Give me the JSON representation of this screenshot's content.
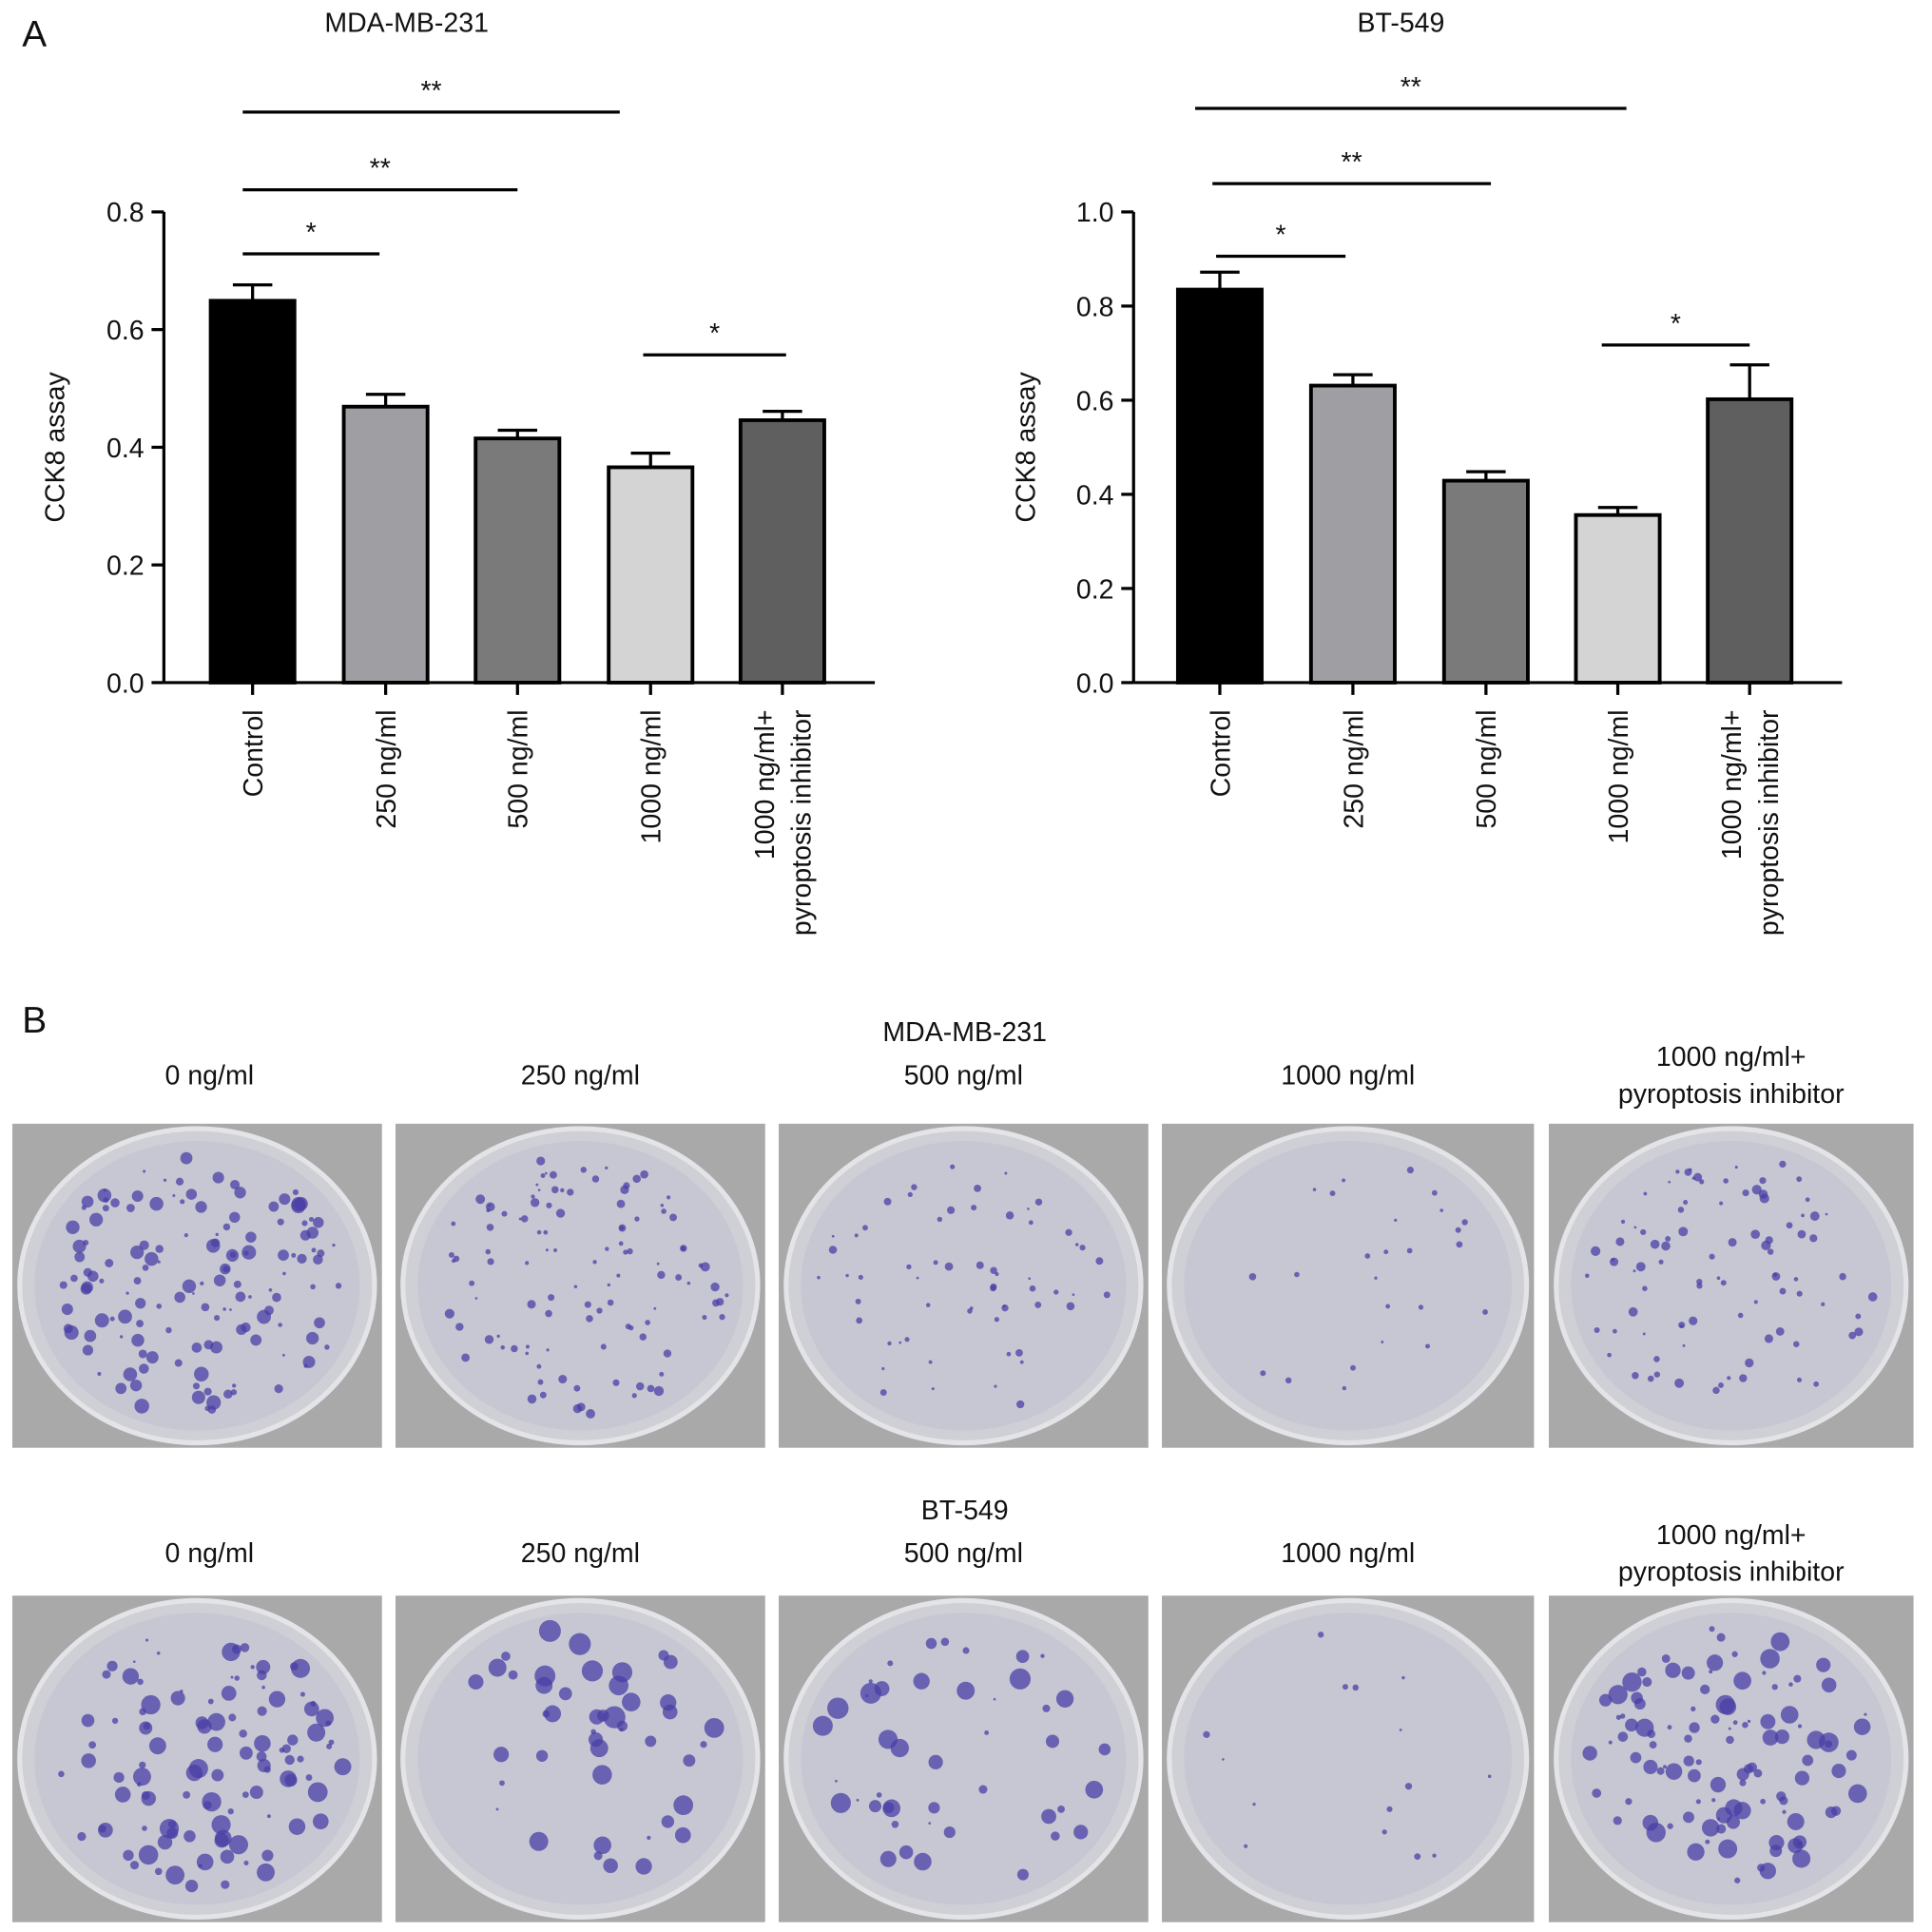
{
  "panel_labels": [
    "A",
    "B"
  ],
  "chart_data": [
    {
      "type": "bar",
      "title": "MDA-MB-231",
      "y_label": "CCK8 assay",
      "categories": [
        "Control",
        "250 ng/ml",
        "500 ng/ml",
        "1000 ng/ml",
        "1000 ng/ml+\npyroptosis inhibitor"
      ],
      "values": [
        0.649,
        0.469,
        0.415,
        0.366,
        0.446
      ],
      "errors": [
        0.027,
        0.021,
        0.014,
        0.024,
        0.015
      ],
      "colors": [
        "#000000",
        "#9e9ea3",
        "#7a7a7a",
        "#d4d4d4",
        "#5f5f5f"
      ],
      "ylim": [
        0,
        0.8
      ],
      "yticks": [
        {
          "value": 0,
          "label": "0.0"
        },
        0.2,
        0.4,
        0.6,
        0.8
      ],
      "annotations": [
        "*",
        "**",
        "**",
        "*"
      ]
    },
    {
      "type": "bar",
      "title": "BT-549",
      "y_label": "CCK8 assay",
      "categories": [
        "Control",
        "250 ng/ml",
        "500 ng/ml",
        "1000 ng/ml",
        "1000 ng/ml+\npyroptosis inhibitor"
      ],
      "values": [
        0.835,
        0.631,
        0.429,
        0.356,
        0.602
      ],
      "errors": [
        0.037,
        0.023,
        0.019,
        0.016,
        0.073
      ],
      "colors": [
        "#000000",
        "#9e9ea3",
        "#7a7a7a",
        "#d4d4d4",
        "#5f5f5f"
      ],
      "ylim": [
        0,
        1
      ],
      "yticks": [
        {
          "value": 0,
          "label": "0.0"
        },
        0.2,
        0.4,
        0.6,
        0.8,
        {
          "value": 1,
          "label": "1.0"
        }
      ],
      "annotations": [
        "*",
        "**",
        "**",
        "*"
      ]
    }
  ],
  "colony_panels": [
    {
      "title": "MDA-MB-231",
      "labels": [
        "0 ng/ml",
        "250 ng/ml",
        "500 ng/ml",
        "1000 ng/ml",
        "1000 ng/ml+\npyroptosis inhibitor"
      ]
    },
    {
      "title": "BT-549",
      "labels": [
        "0 ng/ml",
        "250 ng/ml",
        "500 ng/ml",
        "1000 ng/ml",
        "1000 ng/ml+\npyroptosis inhibitor"
      ]
    }
  ]
}
